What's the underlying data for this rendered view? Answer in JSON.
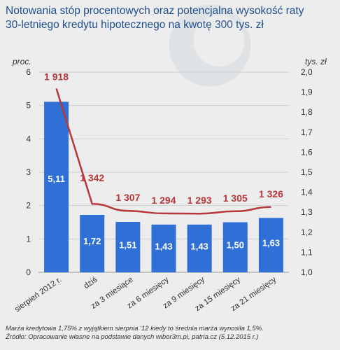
{
  "chart_data": {
    "type": "bar",
    "title": "Notowania stóp procentowych oraz potencjalna wysokość raty 30-letniego kredytu hipotecznego na kwotę 300 tys. zł",
    "categories": [
      "sierpień 2012 r.",
      "dziś",
      "za 3 miesiące",
      "za 6 miesięcy",
      "za 9 miesięcy",
      "za 15 miesięcy",
      "za 21 miesięcy"
    ],
    "bar_series": {
      "values": [
        5.11,
        1.72,
        1.51,
        1.43,
        1.43,
        1.5,
        1.63
      ],
      "labels": [
        "5,11",
        "1,72",
        "1,51",
        "1,43",
        "1,43",
        "1,50",
        "1,63"
      ],
      "color": "#2f6fd6"
    },
    "line_series": {
      "values": [
        1918,
        1342,
        1307,
        1294,
        1293,
        1305,
        1326
      ],
      "labels": [
        "1 918",
        "1 342",
        "1 307",
        "1 294",
        "1 293",
        "1 305",
        "1 326"
      ],
      "color": "#b7373a"
    },
    "left_axis": {
      "label": "proc.",
      "ylim": [
        0,
        6
      ],
      "ticks": [
        "0",
        "1",
        "2",
        "3",
        "4",
        "5",
        "6"
      ]
    },
    "right_axis": {
      "label": "tys. zł",
      "ylim": [
        1.0,
        2.0
      ],
      "ticks": [
        "1,0",
        "1,1",
        "1,2",
        "1,3",
        "1,4",
        "1,5",
        "1,6",
        "1,7",
        "1,8",
        "1,9",
        "2,0"
      ]
    },
    "grid": true
  },
  "footnote": {
    "line1": "Marża kredytowa 1,75% z wyjątkiem sierpnia '12 kiedy to średnia marża wynosiła 1,5%.",
    "line2": "Źródło: Opracowanie własne na podstawie danych wibor3m.pl, patria.cz (5.12.2015 r.)"
  }
}
